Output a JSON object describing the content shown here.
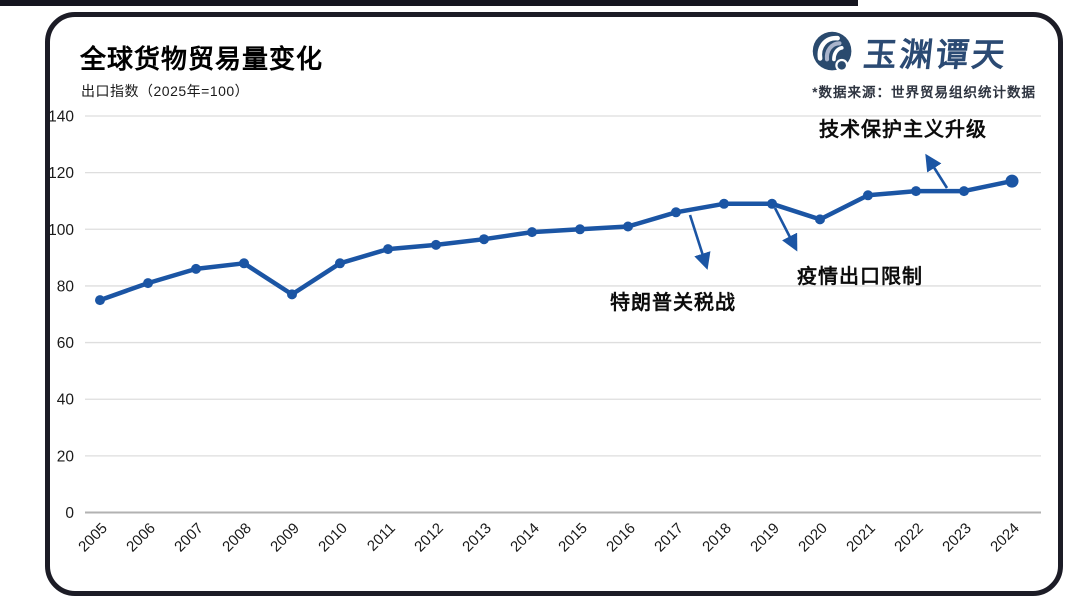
{
  "header": {
    "title": "全球货物贸易量变化",
    "subtitle": "出口指数（2025年=100）",
    "logo_text": "玉渊谭天",
    "source_note": "*数据来源：世界贸易组织统计数据"
  },
  "colors": {
    "line": "#1b55a4",
    "grid": "#dedede",
    "axis": "#b2b2b2",
    "frame": "#1c1c26",
    "logo_blue": "#2b4a73"
  },
  "chart_data": {
    "type": "line",
    "title": "全球货物贸易量变化",
    "ylabel": "出口指数（2025年=100）",
    "x": [
      "2005",
      "2006",
      "2007",
      "2008",
      "2009",
      "2010",
      "2011",
      "2012",
      "2013",
      "2014",
      "2015",
      "2016",
      "2017",
      "2018",
      "2019",
      "2020",
      "2021",
      "2022",
      "2023",
      "2024"
    ],
    "values": [
      75,
      81,
      86,
      88,
      77,
      88,
      93,
      94.5,
      96.5,
      99,
      100,
      101,
      106,
      109,
      109,
      103.5,
      112,
      113.5,
      113.5,
      117
    ],
    "ylim": [
      0,
      140
    ],
    "yticks": [
      0,
      20,
      40,
      60,
      80,
      100,
      120,
      140
    ],
    "grid": true,
    "legend": "none",
    "line_color": "#1b55a4",
    "annotations": [
      {
        "label": "特朗普关税战",
        "year": "2017"
      },
      {
        "label": "疫情出口限制",
        "year": "2019"
      },
      {
        "label": "技术保护主义升级",
        "year": "2022"
      }
    ]
  }
}
